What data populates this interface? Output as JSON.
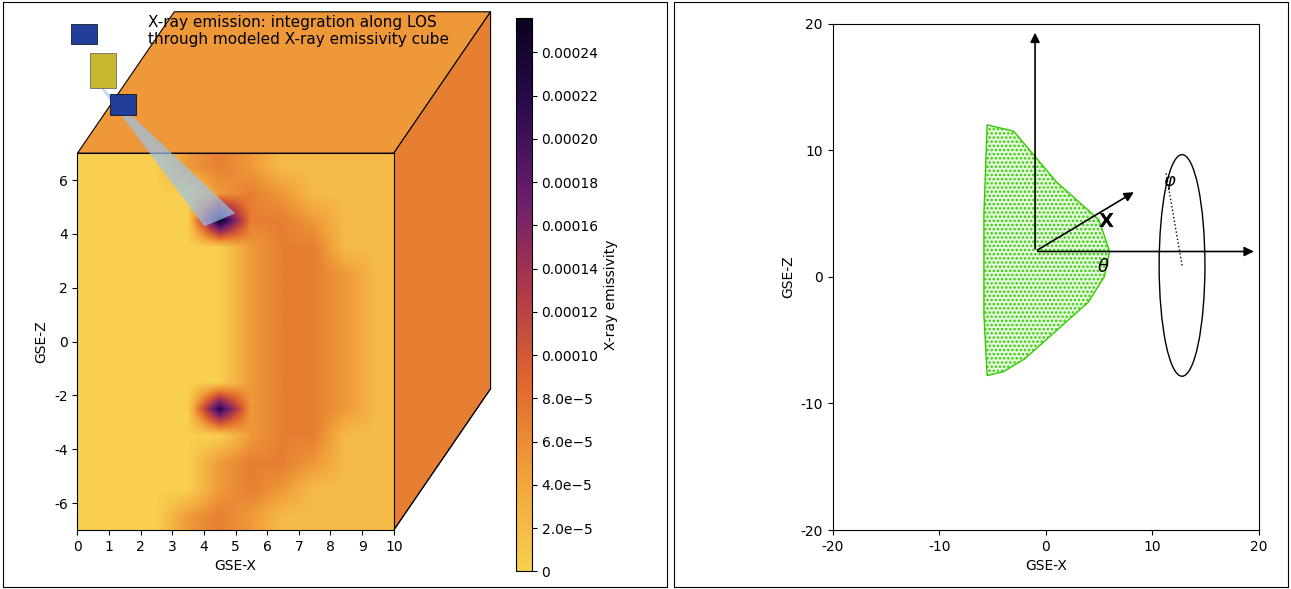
{
  "chart_data": [
    {
      "type": "heatmap",
      "annotation": "X-ray emission: integration along LOS\nthrough modeled X-ray emissivity cube",
      "xlabel": "GSE-X",
      "ylabel": "GSE-Z",
      "xlim": [
        0,
        10
      ],
      "ylim": [
        -7,
        7
      ],
      "xticks": [
        0,
        1,
        2,
        3,
        4,
        5,
        6,
        7,
        8,
        9,
        10
      ],
      "yticks": [
        -6,
        -4,
        -2,
        0,
        2,
        4,
        6
      ],
      "cells": [
        [
          0,
          0,
          0,
          5e-05,
          7e-05,
          5e-05,
          2e-05,
          2e-05,
          2e-05,
          2e-05
        ],
        [
          0,
          0,
          0,
          0,
          5e-05,
          7e-05,
          5e-05,
          2e-05,
          2e-05,
          2e-05
        ],
        [
          0,
          0,
          0,
          0,
          5e-05,
          7e-05,
          7e-05,
          5e-05,
          2e-05,
          2e-05
        ],
        [
          0,
          0,
          0,
          0,
          0,
          5e-05,
          7e-05,
          7e-05,
          2e-05,
          2e-05
        ],
        [
          0,
          0,
          0,
          0,
          0.00022,
          5e-05,
          7e-05,
          7e-05,
          5e-05,
          2e-05
        ],
        [
          0,
          0,
          0,
          0,
          0,
          5e-05,
          7e-05,
          7e-05,
          5e-05,
          2e-05
        ],
        [
          0,
          0,
          0,
          0,
          0,
          5e-05,
          7e-05,
          7e-05,
          5e-05,
          2e-05
        ],
        [
          0,
          0,
          0,
          0,
          0,
          5e-05,
          7e-05,
          7e-05,
          5e-05,
          2e-05
        ],
        [
          0,
          0,
          0,
          0,
          0,
          5e-05,
          7e-05,
          7e-05,
          5e-05,
          2e-05
        ],
        [
          0,
          0,
          0,
          0,
          0,
          5e-05,
          7e-05,
          7e-05,
          5e-05,
          2e-05
        ],
        [
          0,
          0,
          0,
          0,
          0,
          5e-05,
          7e-05,
          7e-05,
          2e-05,
          2e-05
        ],
        [
          0,
          0,
          0,
          0,
          0.00025,
          7e-05,
          7e-05,
          5e-05,
          2e-05,
          2e-05
        ],
        [
          0,
          0,
          0,
          0,
          5e-05,
          7e-05,
          5e-05,
          2e-05,
          2e-05,
          2e-05
        ],
        [
          0,
          0,
          0,
          5e-05,
          7e-05,
          5e-05,
          2e-05,
          2e-05,
          2e-05,
          2e-05
        ]
      ],
      "colorbar": {
        "label": "X-ray emissivity",
        "range": [
          0,
          0.000256
        ],
        "ticks": [
          {
            "value": 0,
            "label": "0"
          },
          {
            "value": 2e-05,
            "label": "2.0e−5"
          },
          {
            "value": 4e-05,
            "label": "4.0e−5"
          },
          {
            "value": 6e-05,
            "label": "6.0e−5"
          },
          {
            "value": 8e-05,
            "label": "8.0e−5"
          },
          {
            "value": 0.0001,
            "label": "0.00010"
          },
          {
            "value": 0.00012,
            "label": "0.00012"
          },
          {
            "value": 0.00014,
            "label": "0.00014"
          },
          {
            "value": 0.00016,
            "label": "0.00016"
          },
          {
            "value": 0.00018,
            "label": "0.00018"
          },
          {
            "value": 0.0002,
            "label": "0.00020"
          },
          {
            "value": 0.00022,
            "label": "0.00022"
          },
          {
            "value": 0.00024,
            "label": "0.00024"
          }
        ]
      }
    },
    {
      "type": "area",
      "xlabel": "GSE-X",
      "ylabel": "GSE-Z",
      "xlim": [
        -20,
        20
      ],
      "ylim": [
        -20,
        20
      ],
      "xticks": [
        -20,
        -10,
        0,
        10,
        20
      ],
      "yticks": [
        -20,
        -10,
        0,
        10,
        20
      ],
      "color": "#33cc00",
      "x": [
        -5.5,
        -3,
        -1,
        1,
        3,
        5,
        6,
        5.5,
        4,
        2,
        0,
        -2,
        -4,
        -5.5,
        -5.8,
        -5.8,
        -5.5
      ],
      "y": [
        12,
        11.5,
        9.5,
        7.5,
        6,
        4.5,
        2,
        0,
        -2,
        -3.5,
        -5,
        -6.5,
        -7.5,
        -7.8,
        -3,
        5,
        12
      ],
      "annotations": [
        "X",
        "θ",
        "φ"
      ]
    }
  ]
}
